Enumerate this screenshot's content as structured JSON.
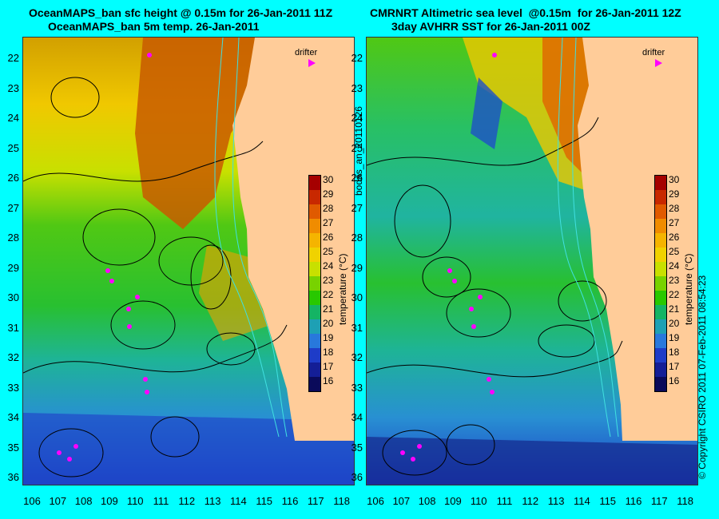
{
  "left_panel": {
    "title_line1": "OceanMAPS_ban sfc height @ 0.15m for 26-Jan-2011 11Z",
    "title_line2": "OceanMAPS_ban 5m temp. 26-Jan-2011",
    "legend_label": "drifter"
  },
  "right_panel": {
    "title_line1": "CMRNRT Altimetric sea level  @0.15m  for 26-Jan-2011 12Z",
    "title_line2": "3day AVHRR SST for 26-Jan-2011 00Z",
    "legend_label": "drifter"
  },
  "colorbar": {
    "label": "temperature (°C)",
    "ticks": [
      "30",
      "29",
      "28",
      "27",
      "26",
      "25",
      "24",
      "23",
      "22",
      "21",
      "20",
      "19",
      "18",
      "17",
      "16"
    ],
    "colors": [
      "#a50000",
      "#c82800",
      "#e05a00",
      "#f08c00",
      "#f5b400",
      "#f0d200",
      "#c8e000",
      "#78d200",
      "#28c800",
      "#14b464",
      "#1ea0b4",
      "#2878dc",
      "#1e3cc8",
      "#141e96",
      "#0a0a5a"
    ]
  },
  "latitudes": [
    "22",
    "23",
    "24",
    "25",
    "26",
    "27",
    "28",
    "29",
    "30",
    "31",
    "32",
    "33",
    "34",
    "35",
    "36"
  ],
  "longitudes": [
    "106",
    "107",
    "108",
    "109",
    "110",
    "111",
    "112",
    "113",
    "114",
    "115",
    "116",
    "117",
    "118"
  ],
  "side_label": "bodas_an_20110126",
  "copyright": "© Copyright CSIRO 2011   07-Feb-2011 08:54:23",
  "land_color": "#ffcc99"
}
